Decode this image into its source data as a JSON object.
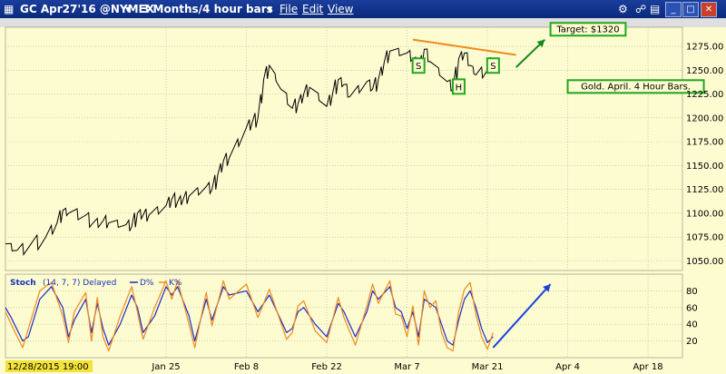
{
  "window": {
    "title": "GC Apr27'16 @NYMEX",
    "interval": "3 Months/4 hour bars",
    "menu": [
      "File",
      "Edit",
      "View"
    ]
  },
  "chart_data": [
    {
      "type": "line",
      "panel": "price",
      "title": "",
      "ylim": [
        1040,
        1295
      ],
      "yticks": [
        1050,
        1075,
        1100,
        1125,
        1150,
        1175,
        1200,
        1225,
        1250,
        1275
      ],
      "ytick_labels": [
        "1050.00",
        "1075.00",
        "1100.00",
        "1125.00",
        "1150.00",
        "1175.00",
        "1200.00",
        "1225.00",
        "1250.00",
        "1275.00"
      ],
      "x_axis": {
        "dates": [
          "2015-12-28",
          "2016-01-25",
          "2016-02-08",
          "2016-02-22",
          "2016-03-07",
          "2016-03-21",
          "2016-04-04",
          "2016-04-18"
        ],
        "labels": [
          "12/28/2015 19:00",
          "Jan 25",
          "Feb 8",
          "Feb 22",
          "Mar 7",
          "Mar 21",
          "Apr 4",
          "Apr 18"
        ],
        "xlim": [
          "2015-12-28",
          "2016-04-24"
        ]
      },
      "series": [
        {
          "color": "#000000",
          "points": [
            [
              "2015-12-28",
              1068
            ],
            [
              "2015-12-30",
              1061
            ],
            [
              "2016-01-01",
              1064
            ],
            [
              "2016-01-04",
              1075
            ],
            [
              "2016-01-06",
              1090
            ],
            [
              "2016-01-07",
              1103
            ],
            [
              "2016-01-08",
              1100
            ],
            [
              "2016-01-11",
              1098
            ],
            [
              "2016-01-12",
              1088
            ],
            [
              "2016-01-14",
              1092
            ],
            [
              "2016-01-15",
              1090
            ],
            [
              "2016-01-18",
              1088
            ],
            [
              "2016-01-19",
              1086
            ],
            [
              "2016-01-20",
              1100
            ],
            [
              "2016-01-21",
              1098
            ],
            [
              "2016-01-22",
              1098
            ],
            [
              "2016-01-25",
              1108
            ],
            [
              "2016-01-26",
              1115
            ],
            [
              "2016-01-27",
              1112
            ],
            [
              "2016-01-28",
              1115
            ],
            [
              "2016-01-29",
              1118
            ],
            [
              "2016-02-01",
              1128
            ],
            [
              "2016-02-02",
              1125
            ],
            [
              "2016-02-03",
              1140
            ],
            [
              "2016-02-04",
              1155
            ],
            [
              "2016-02-05",
              1158
            ],
            [
              "2016-02-08",
              1190
            ],
            [
              "2016-02-09",
              1195
            ],
            [
              "2016-02-10",
              1200
            ],
            [
              "2016-02-11",
              1240
            ],
            [
              "2016-02-12",
              1255
            ],
            [
              "2016-02-14",
              1230
            ],
            [
              "2016-02-16",
              1210
            ],
            [
              "2016-02-17",
              1215
            ],
            [
              "2016-02-18",
              1225
            ],
            [
              "2016-02-19",
              1232
            ],
            [
              "2016-02-22",
              1212
            ],
            [
              "2016-02-23",
              1225
            ],
            [
              "2016-02-24",
              1240
            ],
            [
              "2016-02-25",
              1235
            ],
            [
              "2016-02-26",
              1222
            ],
            [
              "2016-02-29",
              1238
            ],
            [
              "2016-03-01",
              1230
            ],
            [
              "2016-03-02",
              1240
            ],
            [
              "2016-03-03",
              1258
            ],
            [
              "2016-03-04",
              1270
            ],
            [
              "2016-03-07",
              1268
            ],
            [
              "2016-03-08",
              1262
            ],
            [
              "2016-03-09",
              1250
            ],
            [
              "2016-03-10",
              1272
            ],
            [
              "2016-03-11",
              1259
            ],
            [
              "2016-03-14",
              1238
            ],
            [
              "2016-03-15",
              1230
            ],
            [
              "2016-03-16",
              1262
            ],
            [
              "2016-03-17",
              1268
            ],
            [
              "2016-03-18",
              1255
            ],
            [
              "2016-03-19",
              1245
            ],
            [
              "2016-03-21",
              1250
            ],
            [
              "2016-03-22",
              1262
            ]
          ]
        }
      ],
      "trendline": {
        "color": "#f08a1c",
        "points": [
          [
            "2016-03-08",
            1282
          ],
          [
            "2016-03-26",
            1266
          ]
        ]
      },
      "arrow": {
        "color": "#128a18",
        "from": [
          "2016-03-26",
          1253
        ],
        "to": [
          "2016-03-31",
          1282
        ]
      },
      "annotations": [
        {
          "text": "S",
          "x": "2016-03-09",
          "y": 1251
        },
        {
          "text": "H",
          "x": "2016-03-16",
          "y": 1229
        },
        {
          "text": "S",
          "x": "2016-03-22",
          "y": 1251
        },
        {
          "text": "Target: $1320",
          "x": "2016-04-01",
          "y": 1290
        },
        {
          "text": "Gold. April. 4 Hour Bars.",
          "x": "2016-04-04",
          "y": 1230
        }
      ]
    },
    {
      "type": "line",
      "panel": "stochastic",
      "title": "Stoch",
      "params": "(14, 7, 7) Delayed",
      "legend": [
        "D%",
        "K%"
      ],
      "ylim": [
        0,
        100
      ],
      "yticks": [
        20,
        40,
        60,
        80
      ],
      "series": [
        {
          "name": "D%",
          "color": "#1a2bc8",
          "points": [
            [
              "2015-12-28",
              60
            ],
            [
              "2015-12-29",
              48
            ],
            [
              "2015-12-31",
              20
            ],
            [
              "2016-01-01",
              25
            ],
            [
              "2016-01-03",
              70
            ],
            [
              "2016-01-05",
              85
            ],
            [
              "2016-01-07",
              60
            ],
            [
              "2016-01-08",
              25
            ],
            [
              "2016-01-09",
              45
            ],
            [
              "2016-01-11",
              70
            ],
            [
              "2016-01-12",
              30
            ],
            [
              "2016-01-13",
              65
            ],
            [
              "2016-01-14",
              35
            ],
            [
              "2016-01-15",
              15
            ],
            [
              "2016-01-17",
              40
            ],
            [
              "2016-01-19",
              75
            ],
            [
              "2016-01-20",
              60
            ],
            [
              "2016-01-21",
              30
            ],
            [
              "2016-01-23",
              50
            ],
            [
              "2016-01-25",
              85
            ],
            [
              "2016-01-26",
              75
            ],
            [
              "2016-01-27",
              85
            ],
            [
              "2016-01-29",
              50
            ],
            [
              "2016-01-30",
              20
            ],
            [
              "2016-02-01",
              70
            ],
            [
              "2016-02-02",
              45
            ],
            [
              "2016-02-04",
              85
            ],
            [
              "2016-02-05",
              75
            ],
            [
              "2016-02-08",
              80
            ],
            [
              "2016-02-10",
              55
            ],
            [
              "2016-02-12",
              75
            ],
            [
              "2016-02-15",
              30
            ],
            [
              "2016-02-16",
              35
            ],
            [
              "2016-02-17",
              55
            ],
            [
              "2016-02-18",
              60
            ],
            [
              "2016-02-20",
              40
            ],
            [
              "2016-02-22",
              25
            ],
            [
              "2016-02-24",
              65
            ],
            [
              "2016-02-25",
              55
            ],
            [
              "2016-02-27",
              25
            ],
            [
              "2016-02-29",
              55
            ],
            [
              "2016-03-01",
              80
            ],
            [
              "2016-03-02",
              70
            ],
            [
              "2016-03-04",
              85
            ],
            [
              "2016-03-05",
              60
            ],
            [
              "2016-03-06",
              55
            ],
            [
              "2016-03-07",
              35
            ],
            [
              "2016-03-08",
              55
            ],
            [
              "2016-03-09",
              25
            ],
            [
              "2016-03-10",
              70
            ],
            [
              "2016-03-11",
              65
            ],
            [
              "2016-03-12",
              60
            ],
            [
              "2016-03-13",
              40
            ],
            [
              "2016-03-14",
              20
            ],
            [
              "2016-03-15",
              15
            ],
            [
              "2016-03-16",
              45
            ],
            [
              "2016-03-17",
              70
            ],
            [
              "2016-03-18",
              80
            ],
            [
              "2016-03-19",
              60
            ],
            [
              "2016-03-20",
              35
            ],
            [
              "2016-03-21",
              18
            ],
            [
              "2016-03-22",
              25
            ]
          ]
        },
        {
          "name": "K%",
          "color": "#f08a1c",
          "points": [
            [
              "2015-12-28",
              55
            ],
            [
              "2015-12-29",
              40
            ],
            [
              "2015-12-31",
              12
            ],
            [
              "2016-01-01",
              35
            ],
            [
              "2016-01-03",
              80
            ],
            [
              "2016-01-05",
              90
            ],
            [
              "2016-01-07",
              50
            ],
            [
              "2016-01-08",
              18
            ],
            [
              "2016-01-09",
              55
            ],
            [
              "2016-01-11",
              78
            ],
            [
              "2016-01-12",
              20
            ],
            [
              "2016-01-13",
              72
            ],
            [
              "2016-01-14",
              25
            ],
            [
              "2016-01-15",
              8
            ],
            [
              "2016-01-17",
              50
            ],
            [
              "2016-01-19",
              85
            ],
            [
              "2016-01-20",
              55
            ],
            [
              "2016-01-21",
              22
            ],
            [
              "2016-01-23",
              60
            ],
            [
              "2016-01-25",
              92
            ],
            [
              "2016-01-26",
              70
            ],
            [
              "2016-01-27",
              92
            ],
            [
              "2016-01-29",
              40
            ],
            [
              "2016-01-30",
              12
            ],
            [
              "2016-02-01",
              78
            ],
            [
              "2016-02-02",
              38
            ],
            [
              "2016-02-04",
              92
            ],
            [
              "2016-02-05",
              70
            ],
            [
              "2016-02-08",
              88
            ],
            [
              "2016-02-10",
              48
            ],
            [
              "2016-02-12",
              82
            ],
            [
              "2016-02-15",
              22
            ],
            [
              "2016-02-16",
              30
            ],
            [
              "2016-02-17",
              62
            ],
            [
              "2016-02-18",
              68
            ],
            [
              "2016-02-20",
              32
            ],
            [
              "2016-02-22",
              18
            ],
            [
              "2016-02-24",
              72
            ],
            [
              "2016-02-25",
              48
            ],
            [
              "2016-02-27",
              15
            ],
            [
              "2016-02-29",
              62
            ],
            [
              "2016-03-01",
              88
            ],
            [
              "2016-03-02",
              65
            ],
            [
              "2016-03-04",
              92
            ],
            [
              "2016-03-05",
              52
            ],
            [
              "2016-03-06",
              50
            ],
            [
              "2016-03-07",
              25
            ],
            [
              "2016-03-08",
              62
            ],
            [
              "2016-03-09",
              15
            ],
            [
              "2016-03-10",
              80
            ],
            [
              "2016-03-11",
              60
            ],
            [
              "2016-03-12",
              68
            ],
            [
              "2016-03-13",
              30
            ],
            [
              "2016-03-14",
              12
            ],
            [
              "2016-03-15",
              8
            ],
            [
              "2016-03-16",
              55
            ],
            [
              "2016-03-17",
              82
            ],
            [
              "2016-03-18",
              90
            ],
            [
              "2016-03-19",
              52
            ],
            [
              "2016-03-20",
              25
            ],
            [
              "2016-03-21",
              10
            ],
            [
              "2016-03-22",
              30
            ]
          ]
        }
      ],
      "arrow": {
        "color": "#1a40e0",
        "from": [
          "2016-03-22",
          12
        ],
        "to": [
          "2016-04-01",
          88
        ]
      }
    }
  ]
}
